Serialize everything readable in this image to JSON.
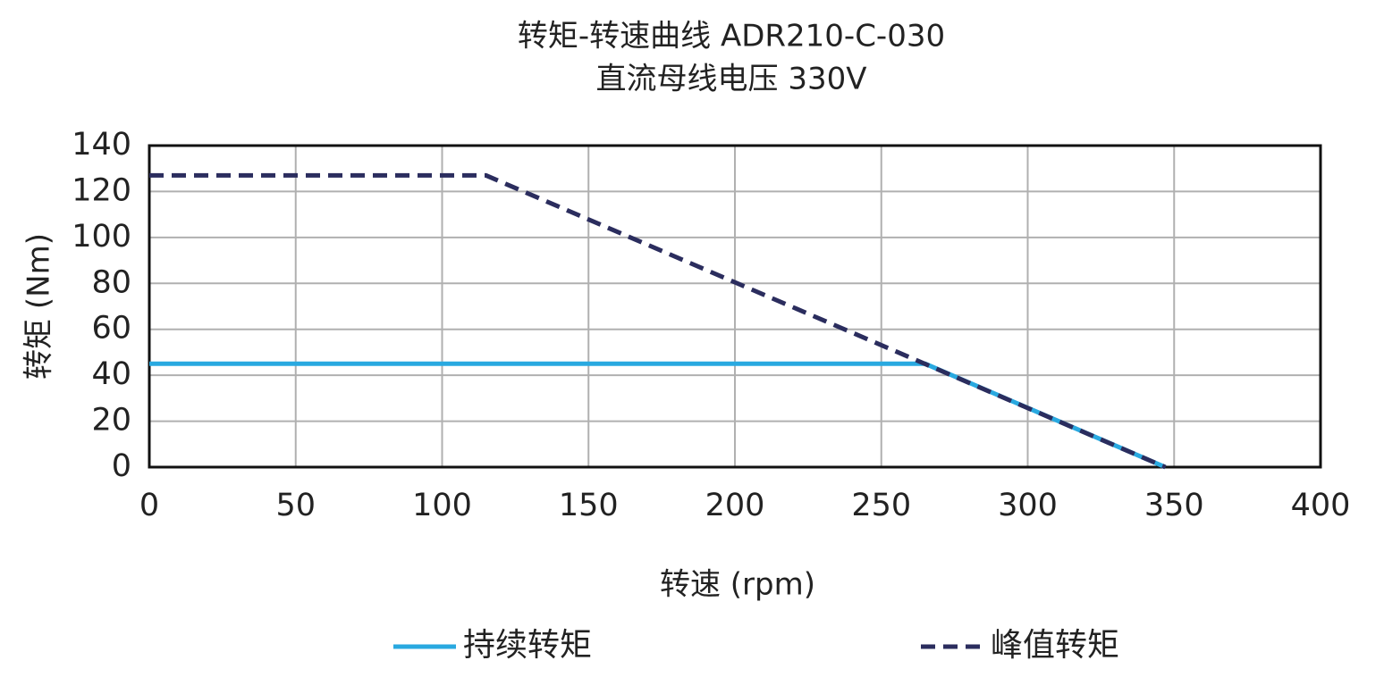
{
  "chart_data": {
    "type": "line",
    "title": "转矩-转速曲线 ADR210-C-030",
    "subtitle": "直流母线电压 330V",
    "x_label": "转速 (rpm)",
    "y_label": "转矩 (Nm)",
    "xlim": [
      0,
      400
    ],
    "xticks": [
      0,
      50,
      100,
      150,
      200,
      250,
      300,
      350,
      400
    ],
    "ylim": [
      0,
      140
    ],
    "yticks": [
      0,
      20,
      40,
      60,
      80,
      100,
      120,
      140
    ],
    "grid": true,
    "series": [
      {
        "name": "持续转矩",
        "color": "#29a9e0",
        "dashed": false,
        "x": [
          0,
          265,
          347
        ],
        "values": [
          45,
          45,
          0
        ]
      },
      {
        "name": "峰值转矩",
        "color": "#2b2d5e",
        "dashed": true,
        "x": [
          0,
          115,
          347
        ],
        "values": [
          127,
          127,
          0
        ]
      }
    ]
  }
}
